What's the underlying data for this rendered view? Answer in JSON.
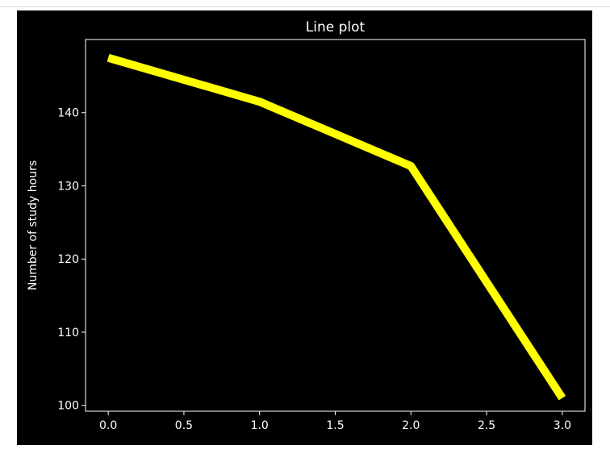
{
  "chart_data": {
    "type": "line",
    "title": "Line plot",
    "xlabel": "",
    "ylabel": "Number of study hours",
    "x": [
      0,
      1,
      2,
      3
    ],
    "series": [
      {
        "values": [
          147.5,
          141.5,
          132.7,
          101.0
        ],
        "color": "#ffff00"
      }
    ],
    "xlim": [
      -0.15,
      3.15
    ],
    "ylim": [
      99.2,
      150.0
    ],
    "xticks": [
      0.0,
      0.5,
      1.0,
      1.5,
      2.0,
      2.5,
      3.0
    ],
    "xtick_labels": [
      "0.0",
      "0.5",
      "1.0",
      "1.5",
      "2.0",
      "2.5",
      "3.0"
    ],
    "yticks": [
      100,
      110,
      120,
      130,
      140
    ],
    "ytick_labels": [
      "100",
      "110",
      "120",
      "130",
      "140"
    ],
    "grid": false,
    "background": "#000000",
    "foreground": "#ffffff"
  }
}
